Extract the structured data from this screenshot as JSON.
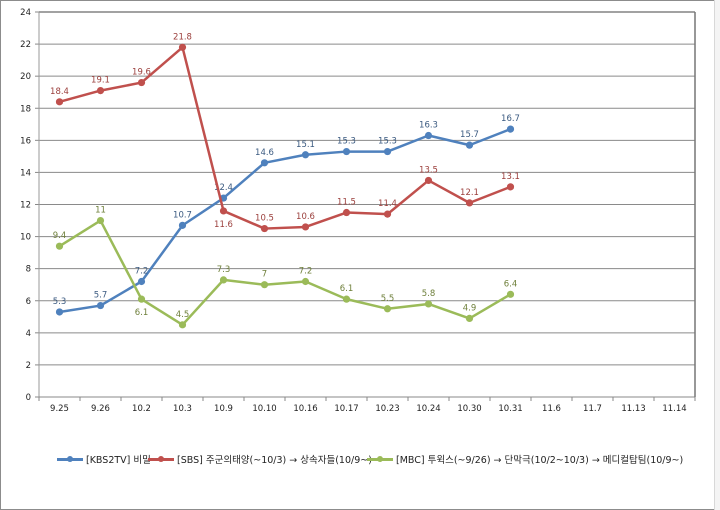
{
  "chart_data": {
    "type": "line",
    "title": "",
    "xlabel": "",
    "ylabel": "",
    "ylim": [
      0,
      24
    ],
    "yticks": [
      0,
      2,
      4,
      6,
      8,
      10,
      12,
      14,
      16,
      18,
      20,
      22,
      24
    ],
    "grid": true,
    "legend_position": "bottom",
    "categories": [
      "9.25",
      "9.26",
      "10.2",
      "10.3",
      "10.9",
      "10.10",
      "10.16",
      "10.17",
      "10.23",
      "10.24",
      "10.30",
      "10.31",
      "11.6",
      "11.7",
      "11.13",
      "11.14"
    ],
    "series": [
      {
        "name": "[KBS2TV] 비밀",
        "color": "#4f81bd",
        "label_color": "#3b5a80",
        "values": [
          5.3,
          5.7,
          7.2,
          10.7,
          12.4,
          14.6,
          15.1,
          15.3,
          15.3,
          16.3,
          15.7,
          16.7,
          null,
          null,
          null,
          null
        ],
        "labels": [
          "5.3",
          "5.7",
          "7.2",
          "10.7",
          "12.4",
          "14.6",
          "15.1",
          "15.3",
          "15.3",
          "16.3",
          "15.7",
          "16.7"
        ]
      },
      {
        "name": "[SBS] 주군의태양(~10/3) → 상속자들(10/9~)",
        "color": "#c0504d",
        "label_color": "#9b3f3c",
        "values": [
          18.4,
          19.1,
          19.6,
          21.8,
          11.6,
          10.5,
          10.6,
          11.5,
          11.4,
          13.5,
          12.1,
          13.1,
          null,
          null,
          null,
          null
        ],
        "labels": [
          "18.4",
          "19.1",
          "19.6",
          "21.8",
          "11.6",
          "10.5",
          "10.6",
          "11.5",
          "11.4",
          "13.5",
          "12.1",
          "13.1"
        ]
      },
      {
        "name": "[MBC] 투윅스(~9/26) → 단막극(10/2~10/3) → 메디컬탑팀(10/9~)",
        "color": "#9bbb59",
        "label_color": "#6e7f3a",
        "values": [
          9.4,
          11,
          6.1,
          4.5,
          7.3,
          7,
          7.2,
          6.1,
          5.5,
          5.8,
          4.9,
          6.4,
          null,
          null,
          null,
          null
        ],
        "labels": [
          "9.4",
          "11",
          "6.1",
          "4.5",
          "7.3",
          "7",
          "7.2",
          "6.1",
          "5.5",
          "5.8",
          "4.9",
          "6.4"
        ]
      }
    ]
  },
  "legend": {
    "items": [
      {
        "label": "[KBS2TV] 비밀",
        "color": "#4f81bd"
      },
      {
        "label": "[SBS] 주군의태양(~10/3) → 상속자들(10/9~)",
        "color": "#c0504d"
      },
      {
        "label": "[MBC] 투윅스(~9/26) → 단막극(10/2~10/3) → 메디컬탑팀(10/9~)",
        "color": "#9bbb59"
      }
    ]
  }
}
